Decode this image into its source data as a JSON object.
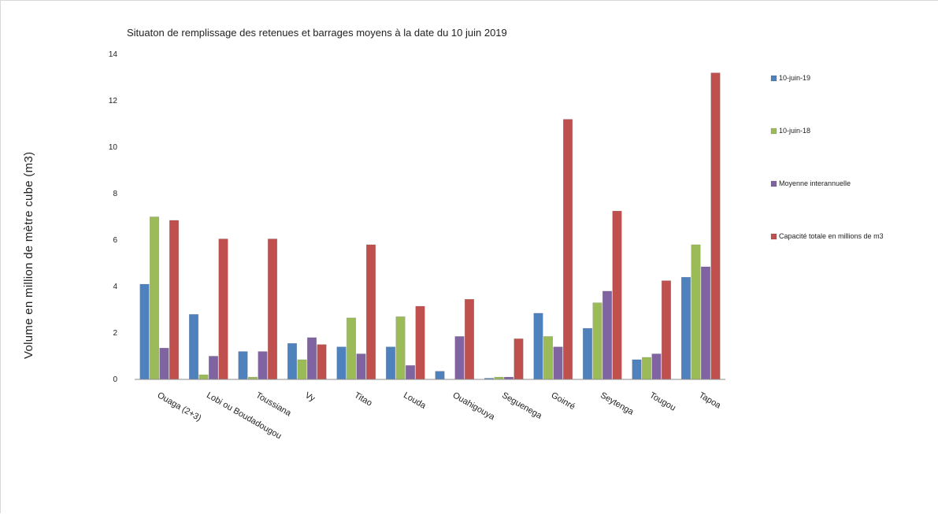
{
  "chart_data": {
    "type": "bar",
    "title": "Situaton de remplissage des retenues et barrages moyens à la date du 10 juin 2019",
    "ylabel": "Volume en million de mètre cube (m3)",
    "xlabel": "",
    "ylim": [
      0,
      14
    ],
    "yticks": [
      0,
      2,
      4,
      6,
      8,
      10,
      12,
      14
    ],
    "grid": false,
    "legend": "right",
    "categories": [
      "Ouaga (2+3)",
      "Lobi ou Boudadougou",
      "Toussiana",
      "Vy",
      "Titao",
      "Louda",
      "Ouahigouya",
      "Seguenega",
      "Goinré",
      "Seytenga",
      "Tougou",
      "Tapoa"
    ],
    "series": [
      {
        "name": "10-juin-19",
        "color": "#4f81bd",
        "values": [
          4.1,
          2.8,
          1.2,
          1.55,
          1.4,
          1.4,
          0.35,
          0.05,
          2.85,
          2.2,
          0.85,
          4.4
        ]
      },
      {
        "name": "10-juin-18",
        "color": "#9bbb59",
        "values": [
          7.0,
          0.2,
          0.1,
          0.85,
          2.65,
          2.7,
          0.0,
          0.1,
          1.85,
          3.3,
          0.95,
          5.8
        ]
      },
      {
        "name": "Moyenne interannuelle",
        "color": "#8064a2",
        "values": [
          1.35,
          1.0,
          1.2,
          1.8,
          1.1,
          0.6,
          1.85,
          0.1,
          1.4,
          3.8,
          1.1,
          4.85
        ]
      },
      {
        "name": "Capacité totale en millions de m3",
        "color": "#c0504d",
        "values": [
          6.85,
          6.05,
          6.05,
          1.5,
          5.8,
          3.15,
          3.45,
          1.75,
          11.2,
          7.25,
          4.25,
          13.2
        ]
      }
    ]
  }
}
